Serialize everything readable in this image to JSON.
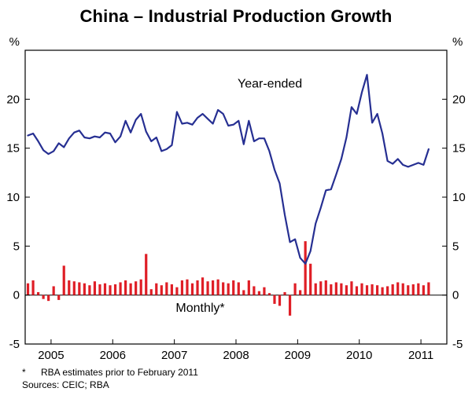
{
  "title": "China – Industrial Production Growth",
  "footnote": {
    "star": "*",
    "text": "RBA estimates prior to February 2011"
  },
  "sources": "Sources: CEIC; RBA",
  "colors": {
    "line": "#262f92",
    "bar": "#df1e26",
    "axis": "#000000"
  },
  "annotations": [
    {
      "text": "Year-ended",
      "t": 2008.55,
      "v": 21.2,
      "color": "line"
    },
    {
      "text": "Monthly*",
      "t": 2007.42,
      "v": -1.7,
      "color": "bar"
    }
  ],
  "chart_data": {
    "type": "line+bar",
    "unit": "%",
    "title": "China – Industrial Production Growth",
    "start": {
      "year": 2004,
      "month": 8
    },
    "x_domain": [
      2004.58,
      2011.42
    ],
    "ylim": [
      -5,
      25
    ],
    "yticks": [
      -5,
      0,
      5,
      10,
      15,
      20
    ],
    "xticks_years": [
      2005,
      2006,
      2007,
      2008,
      2009,
      2010,
      2011
    ],
    "series": [
      {
        "name": "Year-ended",
        "type": "line",
        "values": [
          16.3,
          16.5,
          15.7,
          14.8,
          14.4,
          14.7,
          15.5,
          15.1,
          16.0,
          16.6,
          16.8,
          16.1,
          16.0,
          16.2,
          16.1,
          16.6,
          16.5,
          15.6,
          16.2,
          17.8,
          16.6,
          17.9,
          18.5,
          16.7,
          15.7,
          16.1,
          14.7,
          14.9,
          15.3,
          18.7,
          17.5,
          17.6,
          17.4,
          18.1,
          18.5,
          18.0,
          17.5,
          18.9,
          18.5,
          17.3,
          17.4,
          17.8,
          15.4,
          17.8,
          15.7,
          16.0,
          16.0,
          14.7,
          12.8,
          11.4,
          8.2,
          5.4,
          5.7,
          3.8,
          3.2,
          4.5,
          7.3,
          8.9,
          10.7,
          10.8,
          12.3,
          13.9,
          16.1,
          19.2,
          18.5,
          20.7,
          22.5,
          17.6,
          18.5,
          16.5,
          13.7,
          13.4,
          13.9,
          13.3,
          13.1,
          13.3,
          13.5,
          13.3,
          14.9
        ]
      },
      {
        "name": "Monthly",
        "type": "bar",
        "values": [
          1.2,
          1.5,
          0.3,
          -0.4,
          -0.6,
          0.9,
          -0.5,
          3.0,
          1.5,
          1.4,
          1.3,
          1.2,
          1.0,
          1.4,
          1.1,
          1.2,
          1.0,
          1.1,
          1.3,
          1.5,
          1.2,
          1.4,
          1.6,
          4.2,
          0.6,
          1.2,
          1.0,
          1.3,
          1.1,
          0.8,
          1.5,
          1.6,
          1.2,
          1.5,
          1.8,
          1.4,
          1.5,
          1.6,
          1.3,
          1.2,
          1.5,
          1.3,
          0.5,
          1.5,
          0.9,
          0.4,
          0.8,
          0.2,
          -0.9,
          -1.1,
          0.3,
          -2.1,
          1.2,
          0.5,
          5.5,
          3.2,
          1.2,
          1.4,
          1.5,
          1.1,
          1.3,
          1.2,
          1.0,
          1.4,
          0.9,
          1.2,
          1.0,
          1.1,
          1.0,
          0.8,
          0.9,
          1.1,
          1.3,
          1.2,
          1.0,
          1.1,
          1.2,
          1.0,
          1.3
        ]
      }
    ]
  }
}
